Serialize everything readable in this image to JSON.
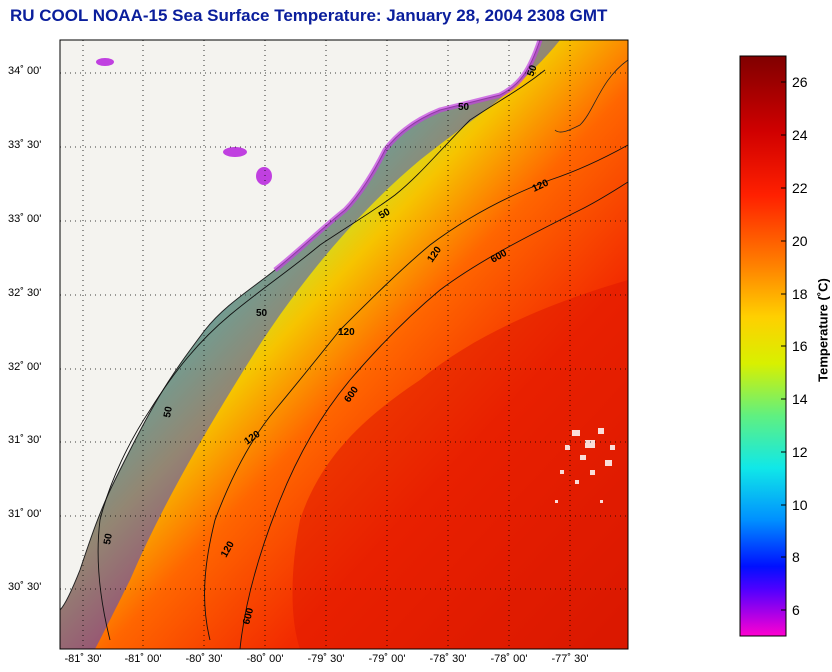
{
  "title": "RU COOL  NOAA-15  Sea Surface Temperature:  January 28, 2004 2308 GMT",
  "map": {
    "lat_labels": [
      "34˚ 00'",
      "33˚ 30'",
      "33˚ 00'",
      "32˚ 30'",
      "32˚ 00'",
      "31˚ 30'",
      "31˚ 00'",
      "30˚ 30'"
    ],
    "lon_labels": [
      "-81˚ 30'",
      "-81˚ 00'",
      "-80˚ 30'",
      "-80˚ 00'",
      "-79˚ 30'",
      "-79˚ 00'",
      "-78˚ 30'",
      "-78˚ 00'",
      "-77˚ 30'"
    ],
    "isobath_labels": [
      "50",
      "50",
      "50",
      "50",
      "50",
      "50",
      "120",
      "120",
      "120",
      "120",
      "120",
      "600",
      "600",
      "600"
    ],
    "land_color": "#f4f3ef",
    "grid": "dotted"
  },
  "colorbar": {
    "label": "Temperature (˚C)",
    "ticks": [
      "26",
      "24",
      "22",
      "20",
      "18",
      "16",
      "14",
      "12",
      "10",
      "8",
      "6"
    ],
    "range": [
      5,
      27
    ]
  }
}
